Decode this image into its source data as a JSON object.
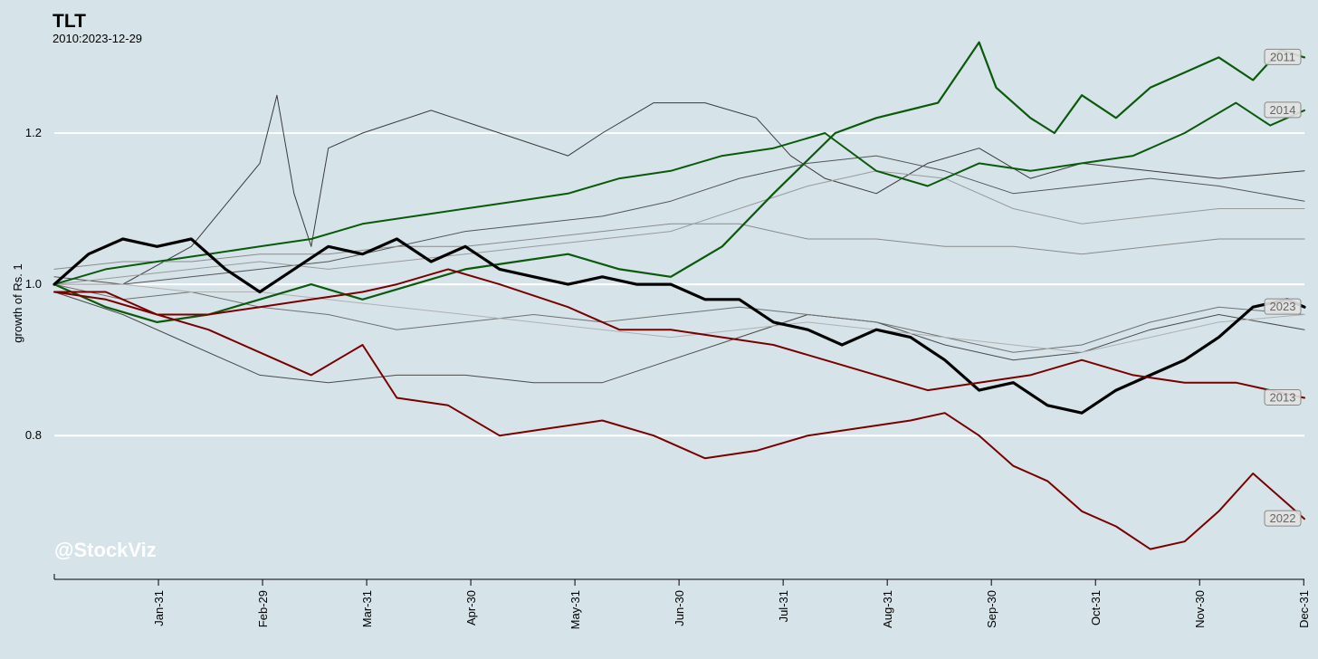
{
  "chart_data": {
    "type": "line",
    "title": "TLT",
    "subtitle": "2010:2023-12-29",
    "ylabel": "growth of Rs. 1",
    "xlabel": "",
    "watermark": "@StockViz",
    "x_ticks": [
      "Jan-31",
      "Feb-29",
      "Mar-31",
      "Apr-30",
      "May-31",
      "Jun-30",
      "Jul-31",
      "Aug-31",
      "Sep-30",
      "Oct-31",
      "Nov-30",
      "Dec-31"
    ],
    "y_ticks": [
      0.8,
      1.0,
      1.2
    ],
    "ylim": [
      0.61,
      1.34
    ],
    "xlim": [
      0,
      365
    ],
    "grid": "horizontal",
    "series": [
      {
        "name": "2011",
        "color": "#0b5a0b",
        "width": 2.2,
        "label_box": true,
        "x": [
          0,
          15,
          30,
          45,
          60,
          75,
          90,
          105,
          120,
          135,
          150,
          165,
          180,
          195,
          210,
          228,
          240,
          258,
          270,
          275,
          285,
          292,
          300,
          310,
          320,
          330,
          340,
          350,
          358,
          365
        ],
        "y": [
          1.0,
          0.97,
          0.95,
          0.96,
          0.98,
          1.0,
          0.98,
          1.0,
          1.02,
          1.03,
          1.04,
          1.02,
          1.01,
          1.05,
          1.12,
          1.2,
          1.22,
          1.24,
          1.32,
          1.26,
          1.22,
          1.2,
          1.25,
          1.22,
          1.26,
          1.28,
          1.3,
          1.27,
          1.31,
          1.3
        ]
      },
      {
        "name": "2014",
        "color": "#0b5a0b",
        "width": 2.0,
        "label_box": true,
        "x": [
          0,
          15,
          30,
          45,
          60,
          75,
          90,
          105,
          120,
          135,
          150,
          165,
          180,
          195,
          210,
          225,
          240,
          255,
          270,
          285,
          300,
          315,
          330,
          345,
          355,
          365
        ],
        "y": [
          1.0,
          1.02,
          1.03,
          1.04,
          1.05,
          1.06,
          1.08,
          1.09,
          1.1,
          1.11,
          1.12,
          1.14,
          1.15,
          1.17,
          1.18,
          1.2,
          1.15,
          1.13,
          1.16,
          1.15,
          1.16,
          1.17,
          1.2,
          1.24,
          1.21,
          1.23
        ]
      },
      {
        "name": "2023",
        "color": "#000000",
        "width": 3.2,
        "label_box": true,
        "x": [
          0,
          10,
          20,
          30,
          40,
          50,
          60,
          70,
          80,
          90,
          100,
          110,
          120,
          130,
          140,
          150,
          160,
          170,
          180,
          190,
          200,
          210,
          220,
          230,
          240,
          250,
          260,
          270,
          280,
          290,
          300,
          310,
          320,
          330,
          340,
          350,
          360,
          365
        ],
        "y": [
          1.0,
          1.04,
          1.06,
          1.05,
          1.06,
          1.02,
          0.99,
          1.02,
          1.05,
          1.04,
          1.06,
          1.03,
          1.05,
          1.02,
          1.01,
          1.0,
          1.01,
          1.0,
          1.0,
          0.98,
          0.98,
          0.95,
          0.94,
          0.92,
          0.94,
          0.93,
          0.9,
          0.86,
          0.87,
          0.84,
          0.83,
          0.86,
          0.88,
          0.9,
          0.93,
          0.97,
          0.98,
          0.97
        ]
      },
      {
        "name": "2013",
        "color": "#7a0000",
        "width": 2.0,
        "label_box": true,
        "x": [
          0,
          15,
          30,
          45,
          60,
          75,
          90,
          100,
          115,
          130,
          150,
          165,
          180,
          195,
          210,
          225,
          240,
          255,
          270,
          285,
          300,
          315,
          330,
          345,
          355,
          365
        ],
        "y": [
          0.99,
          0.99,
          0.96,
          0.96,
          0.97,
          0.98,
          0.99,
          1.0,
          1.02,
          1.0,
          0.97,
          0.94,
          0.94,
          0.93,
          0.92,
          0.9,
          0.88,
          0.86,
          0.87,
          0.88,
          0.9,
          0.88,
          0.87,
          0.87,
          0.86,
          0.85
        ]
      },
      {
        "name": "2022",
        "color": "#7a0000",
        "width": 2.0,
        "label_box": true,
        "x": [
          0,
          15,
          30,
          45,
          60,
          75,
          90,
          100,
          115,
          130,
          145,
          160,
          175,
          190,
          205,
          220,
          235,
          250,
          260,
          270,
          280,
          290,
          300,
          310,
          320,
          330,
          340,
          350,
          360,
          365
        ],
        "y": [
          0.99,
          0.98,
          0.96,
          0.94,
          0.91,
          0.88,
          0.92,
          0.85,
          0.84,
          0.8,
          0.81,
          0.82,
          0.8,
          0.77,
          0.78,
          0.8,
          0.81,
          0.82,
          0.83,
          0.8,
          0.76,
          0.74,
          0.7,
          0.68,
          0.65,
          0.66,
          0.7,
          0.75,
          0.71,
          0.69
        ]
      },
      {
        "name": "",
        "color": "#3a3a3a",
        "width": 1.0,
        "label_box": false,
        "x": [
          0,
          20,
          40,
          60,
          65,
          70,
          75,
          80,
          90,
          110,
          130,
          150,
          160,
          175,
          190,
          205,
          215,
          225,
          240,
          255,
          270,
          285,
          300,
          320,
          340,
          365
        ],
        "y": [
          1.0,
          1.0,
          1.05,
          1.16,
          1.25,
          1.12,
          1.05,
          1.18,
          1.2,
          1.23,
          1.2,
          1.17,
          1.2,
          1.24,
          1.24,
          1.22,
          1.17,
          1.14,
          1.12,
          1.16,
          1.18,
          1.14,
          1.16,
          1.15,
          1.14,
          1.15
        ]
      },
      {
        "name": "",
        "color": "#4a4a4a",
        "width": 1.0,
        "label_box": false,
        "x": [
          0,
          20,
          40,
          60,
          80,
          100,
          120,
          140,
          160,
          180,
          200,
          220,
          240,
          260,
          280,
          300,
          320,
          340,
          365
        ],
        "y": [
          0.99,
          0.96,
          0.92,
          0.88,
          0.87,
          0.88,
          0.88,
          0.87,
          0.87,
          0.9,
          0.93,
          0.96,
          0.95,
          0.92,
          0.9,
          0.91,
          0.94,
          0.96,
          0.94
        ]
      },
      {
        "name": "",
        "color": "#555555",
        "width": 1.0,
        "label_box": false,
        "x": [
          0,
          20,
          40,
          60,
          80,
          100,
          120,
          140,
          160,
          180,
          200,
          220,
          240,
          260,
          280,
          300,
          320,
          340,
          365
        ],
        "y": [
          1.01,
          1.0,
          1.01,
          1.02,
          1.03,
          1.05,
          1.07,
          1.08,
          1.09,
          1.11,
          1.14,
          1.16,
          1.17,
          1.15,
          1.12,
          1.13,
          1.14,
          1.13,
          1.11
        ]
      },
      {
        "name": "",
        "color": "#707070",
        "width": 1.0,
        "label_box": false,
        "x": [
          0,
          20,
          40,
          60,
          80,
          100,
          120,
          140,
          160,
          180,
          200,
          220,
          240,
          260,
          280,
          300,
          320,
          340,
          365
        ],
        "y": [
          1.0,
          0.98,
          0.99,
          0.97,
          0.96,
          0.94,
          0.95,
          0.96,
          0.95,
          0.96,
          0.97,
          0.96,
          0.95,
          0.93,
          0.91,
          0.92,
          0.95,
          0.97,
          0.96
        ]
      },
      {
        "name": "",
        "color": "#8a8a8a",
        "width": 1.0,
        "label_box": false,
        "x": [
          0,
          20,
          40,
          60,
          80,
          100,
          120,
          140,
          160,
          180,
          200,
          220,
          240,
          260,
          280,
          300,
          320,
          340,
          365
        ],
        "y": [
          1.02,
          1.03,
          1.03,
          1.04,
          1.04,
          1.05,
          1.05,
          1.06,
          1.07,
          1.08,
          1.08,
          1.06,
          1.06,
          1.05,
          1.05,
          1.04,
          1.05,
          1.06,
          1.06
        ]
      },
      {
        "name": "",
        "color": "#9a9a9a",
        "width": 1.0,
        "label_box": false,
        "x": [
          0,
          20,
          40,
          60,
          80,
          100,
          120,
          140,
          160,
          180,
          200,
          220,
          240,
          260,
          280,
          300,
          320,
          340,
          365
        ],
        "y": [
          1.0,
          1.01,
          1.02,
          1.03,
          1.02,
          1.03,
          1.04,
          1.05,
          1.06,
          1.07,
          1.1,
          1.13,
          1.15,
          1.14,
          1.1,
          1.08,
          1.09,
          1.1,
          1.1
        ]
      },
      {
        "name": "",
        "color": "#b0b0b0",
        "width": 1.0,
        "label_box": false,
        "x": [
          0,
          20,
          40,
          60,
          80,
          100,
          120,
          140,
          160,
          180,
          200,
          220,
          240,
          260,
          280,
          300,
          320,
          340,
          365
        ],
        "y": [
          1.0,
          1.0,
          0.99,
          0.99,
          0.98,
          0.97,
          0.96,
          0.95,
          0.94,
          0.93,
          0.94,
          0.95,
          0.94,
          0.93,
          0.92,
          0.91,
          0.93,
          0.95,
          0.96
        ]
      }
    ]
  }
}
